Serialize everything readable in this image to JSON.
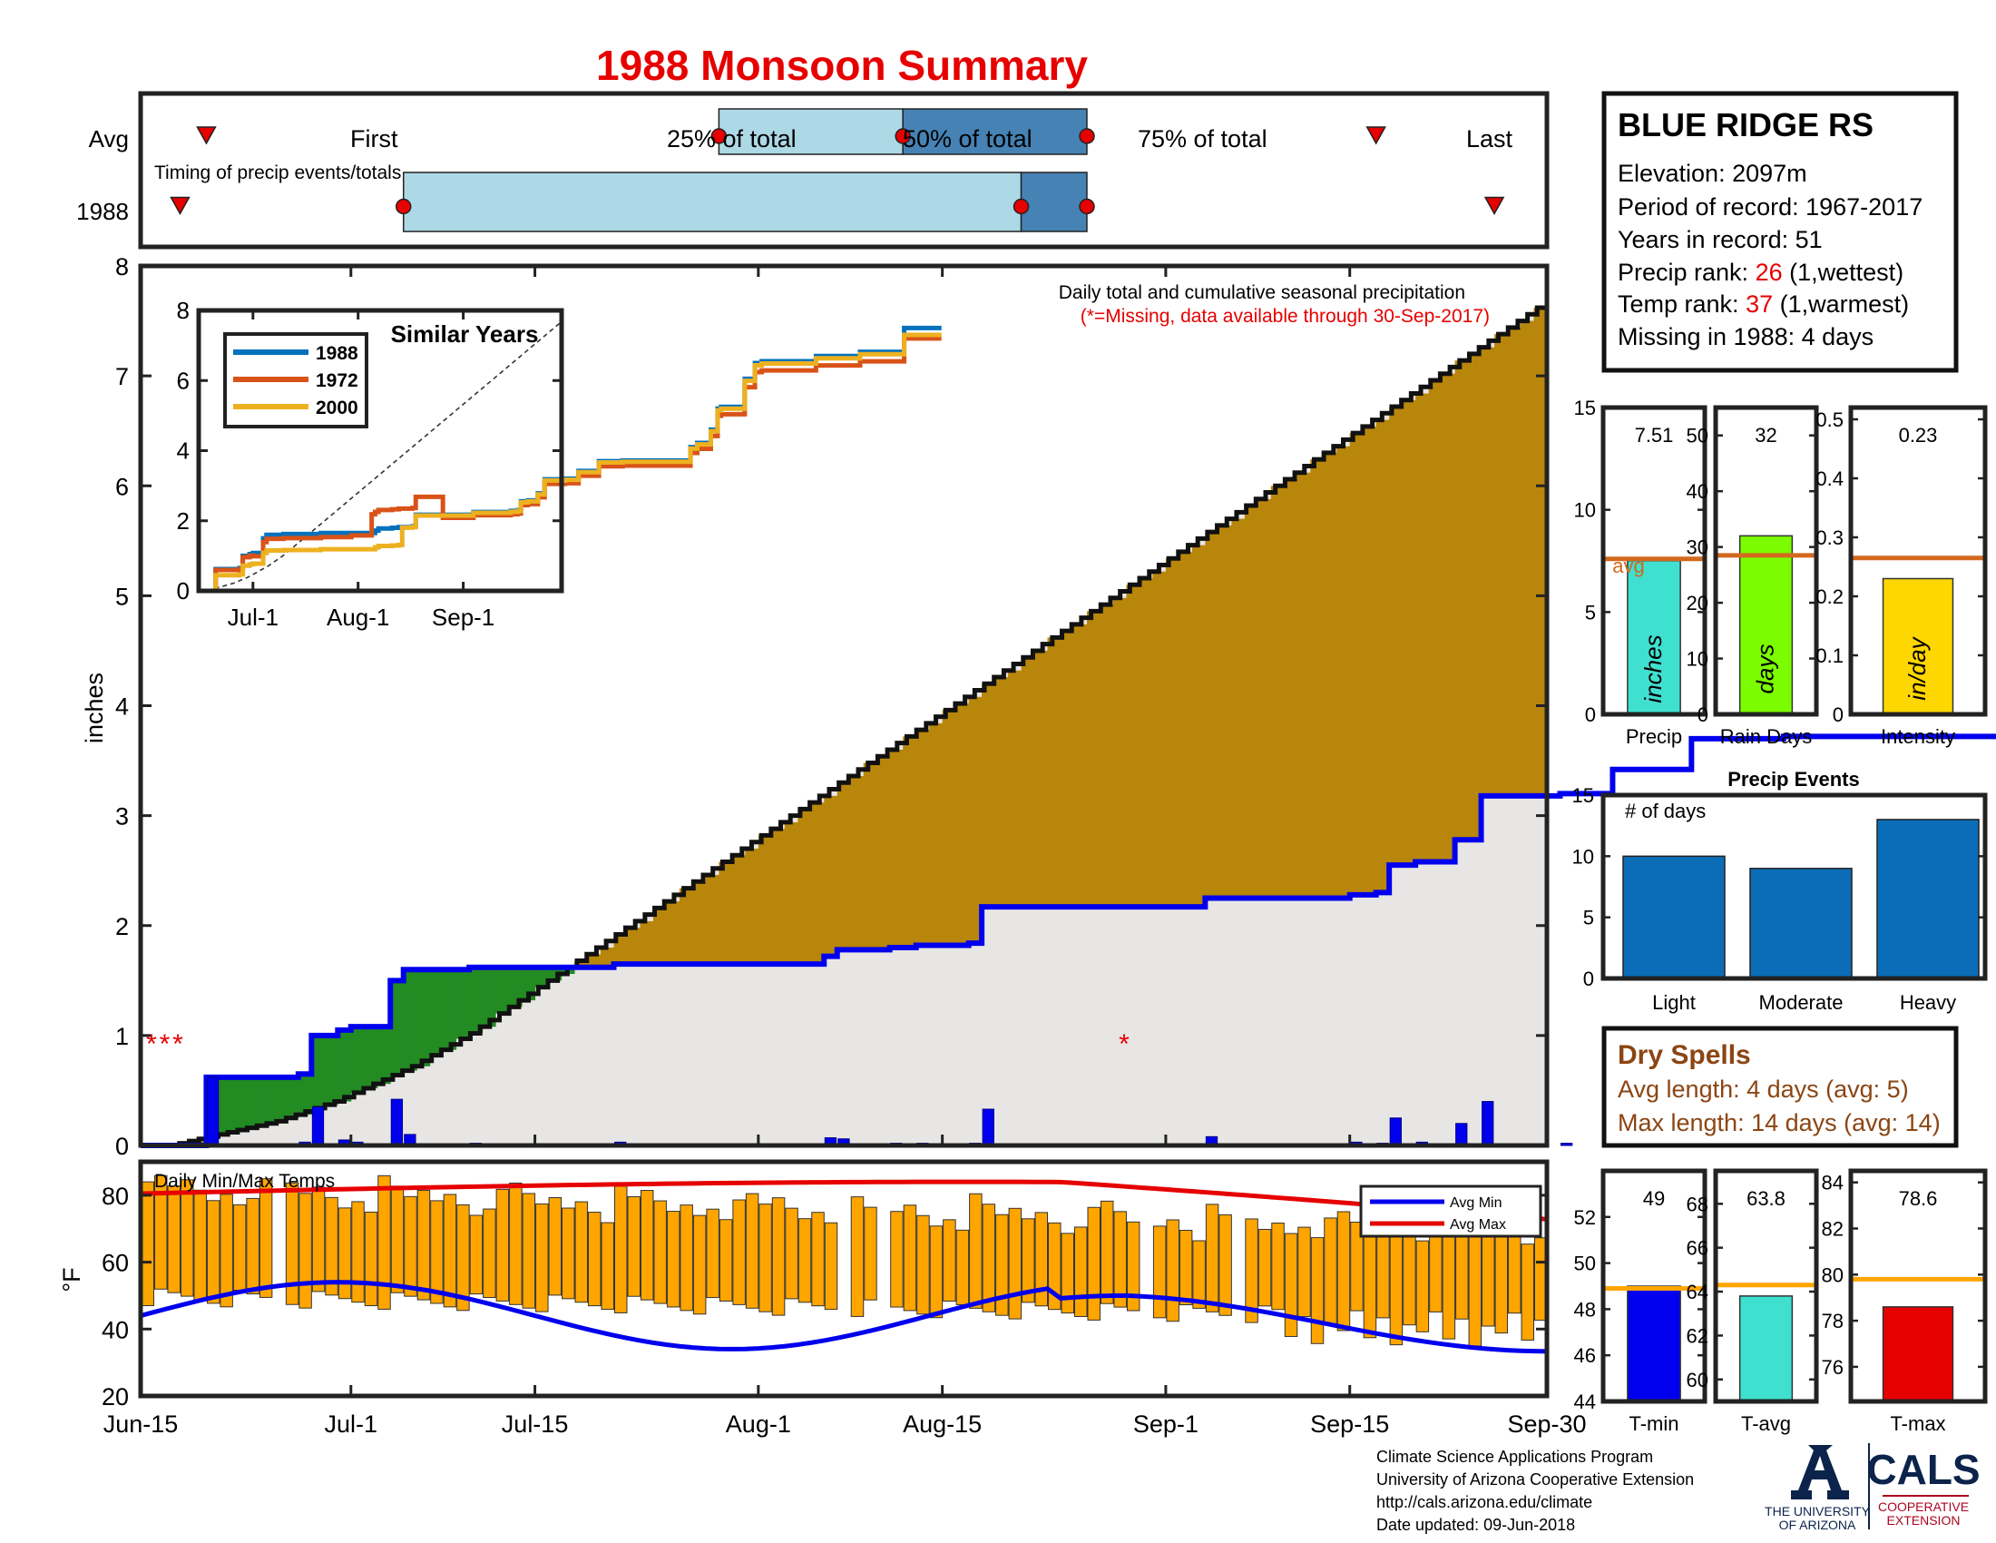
{
  "page": {
    "title": "1988 Monsoon Summary",
    "credits": [
      "Climate Science Applications Program",
      "University of Arizona Cooperative Extension",
      "http://cals.arizona.edu/climate",
      " Date updated: 09-Jun-2018"
    ],
    "logo_ua_text": [
      "THE UNIVERSITY",
      "OF ARIZONA"
    ],
    "logo_cals_text": "CALS",
    "logo_cals_sub": [
      "COOPERATIVE",
      "EXTENSION"
    ]
  },
  "colors": {
    "red": "#e60000",
    "blue_line": "#0000ee",
    "green": "#228b22",
    "brown": "#b8860b",
    "cum_fill": "#e8e6e4",
    "bar_blue": "#0000ee",
    "orange_avg": "#d2691e",
    "event_blue": "#0b6db7",
    "temp_bar": "#ffa500",
    "dry_brown": "#8b4513",
    "box_light": "#add8e6",
    "box_dark": "#4682b4",
    "ua_navy": "#0c234b",
    "ua_red": "#ab0520"
  },
  "station": {
    "name": "BLUE RIDGE RS",
    "elevation": "Elevation: 2097m",
    "period": "Period of record: 1967-2017",
    "years": "Years in record: 51",
    "precip_rank_label": "Precip rank: ",
    "precip_rank_value": "26",
    "precip_rank_note": " (1,wettest)",
    "temp_rank_label": "Temp rank: ",
    "temp_rank_value": "37",
    "temp_rank_note": " (1,warmest)",
    "missing": "Missing in 1988: 4 days"
  },
  "timing": {
    "row_labels": [
      "Avg",
      "1988"
    ],
    "annotation": "Timing of precip events/totals",
    "avg": {
      "first": "Jun-20",
      "p25": "Jul-29",
      "p50": "Aug-12",
      "p75": "Aug-26",
      "last": "Sep-17"
    },
    "year": {
      "first": "Jun-18",
      "p25": "Jul-05",
      "p50": "Aug-21",
      "p75": "Aug-26",
      "last": "Sep-26"
    },
    "labels": {
      "first": "First",
      "p25": "25% of total",
      "p50": "50% of total",
      "p75": "75% of total",
      "last": "Last"
    }
  },
  "chart_data": [
    {
      "type": "area",
      "title": "Daily total and cumulative seasonal precipitation",
      "subtitle": "(*=Missing, data available through 30-Sep-2017)",
      "ylabel": "inches",
      "ylim": [
        0,
        8
      ],
      "yticks": [
        0,
        1,
        2,
        3,
        4,
        5,
        6,
        7,
        8
      ],
      "xticks": [
        "Jun-15",
        "Jul-1",
        "Jul-15",
        "Aug-1",
        "Aug-15",
        "Sep-1",
        "Sep-15",
        "Sep-30"
      ],
      "missing_markers": [
        {
          "day": 0,
          "text": "*"
        },
        {
          "day": 1,
          "text": "*"
        },
        {
          "day": 2,
          "text": "*"
        },
        {
          "day": 74,
          "text": "*"
        }
      ],
      "series": [
        {
          "name": "1988 cumulative",
          "values": [
            0,
            0,
            0,
            0,
            0,
            0.62,
            0.62,
            0.62,
            0.62,
            0.62,
            0.62,
            0.62,
            0.65,
            1.0,
            1.0,
            1.05,
            1.08,
            1.08,
            1.08,
            1.5,
            1.6,
            1.6,
            1.6,
            1.6,
            1.6,
            1.62,
            1.62,
            1.62,
            1.62,
            1.62,
            1.62,
            1.62,
            1.62,
            1.62,
            1.62,
            1.62,
            1.65,
            1.65,
            1.65,
            1.65,
            1.65,
            1.65,
            1.65,
            1.65,
            1.65,
            1.65,
            1.65,
            1.65,
            1.65,
            1.65,
            1.65,
            1.65,
            1.72,
            1.78,
            1.78,
            1.78,
            1.78,
            1.8,
            1.8,
            1.82,
            1.82,
            1.82,
            1.82,
            1.84,
            2.17,
            2.17,
            2.17,
            2.17,
            2.17,
            2.17,
            2.17,
            2.17,
            2.17,
            2.17,
            2.17,
            2.17,
            2.17,
            2.17,
            2.17,
            2.17,
            2.17,
            2.25,
            2.25,
            2.25,
            2.25,
            2.25,
            2.25,
            2.25,
            2.25,
            2.25,
            2.25,
            2.25,
            2.28,
            2.28,
            2.3,
            2.55,
            2.55,
            2.58,
            2.58,
            2.58,
            2.78,
            2.78,
            3.18,
            3.18,
            3.18,
            3.18,
            3.18,
            3.18,
            3.2,
            3.2,
            3.2,
            3.2,
            3.42,
            3.42,
            3.42,
            3.42,
            3.42,
            3.42,
            3.7,
            3.7,
            3.7,
            3.7,
            3.7,
            3.7,
            3.7,
            3.72,
            3.72,
            3.72,
            3.72,
            3.72,
            3.72,
            3.72,
            3.72,
            3.72,
            3.72,
            3.72,
            3.72,
            3.72,
            3.72,
            3.72,
            3.72,
            3.72,
            3.72,
            3.72,
            3.72,
            4.1,
            4.1,
            4.22,
            4.22,
            4.22,
            4.22,
            4.6,
            4.6,
            5.2,
            5.25,
            5.25,
            5.25,
            5.25,
            5.25,
            5.25,
            5.25,
            6.05,
            6.05,
            6.05,
            6.5,
            6.5,
            6.55,
            6.55,
            6.55,
            6.55,
            6.55,
            6.55,
            6.55,
            6.55,
            6.55,
            6.55,
            6.55,
            6.55,
            6.55,
            6.55,
            6.55,
            6.55,
            6.7,
            6.7,
            6.7,
            6.7,
            6.7,
            6.7,
            6.7,
            6.7,
            6.7,
            6.7,
            6.7,
            6.7,
            6.7,
            6.82,
            6.82,
            6.82,
            6.82,
            6.82,
            6.82,
            6.82,
            6.82,
            6.82,
            6.82,
            6.82,
            6.82,
            6.82,
            7.5,
            7.5,
            7.5,
            7.5,
            7.5,
            7.5,
            7.5,
            7.5,
            7.5,
            7.5,
            7.5,
            7.5
          ]
        },
        {
          "name": "Average cumulative",
          "values": [
            0,
            0,
            0,
            0,
            0.02,
            0.04,
            0.06,
            0.08,
            0.1,
            0.12,
            0.14,
            0.16,
            0.18,
            0.2,
            0.22,
            0.25,
            0.28,
            0.31,
            0.34,
            0.37,
            0.4,
            0.44,
            0.48,
            0.52,
            0.56,
            0.6,
            0.64,
            0.68,
            0.72,
            0.77,
            0.82,
            0.87,
            0.92,
            0.97,
            1.02,
            1.08,
            1.14,
            1.2,
            1.26,
            1.32,
            1.38,
            1.44,
            1.5,
            1.56,
            1.62,
            1.68,
            1.74,
            1.8,
            1.86,
            1.92,
            1.98,
            2.04,
            2.1,
            2.16,
            2.22,
            2.28,
            2.34,
            2.4,
            2.46,
            2.52,
            2.58,
            2.64,
            2.7,
            2.76,
            2.82,
            2.88,
            2.94,
            3.0,
            3.06,
            3.12,
            3.18,
            3.24,
            3.3,
            3.36,
            3.42,
            3.48,
            3.54,
            3.6,
            3.66,
            3.72,
            3.78,
            3.84,
            3.9,
            3.96,
            4.02,
            4.08,
            4.14,
            4.2,
            4.26,
            4.32,
            4.38,
            4.44,
            4.5,
            4.56,
            4.62,
            4.68,
            4.74,
            4.8,
            4.86,
            4.92,
            4.98,
            5.04,
            5.1,
            5.16,
            5.22,
            5.28,
            5.34,
            5.4,
            5.46,
            5.52,
            5.58,
            5.64,
            5.7,
            5.76,
            5.82,
            5.88,
            5.94,
            6.0,
            6.06,
            6.12,
            6.18,
            6.24,
            6.3,
            6.36,
            6.42,
            6.48,
            6.54,
            6.6,
            6.66,
            6.72,
            6.78,
            6.84,
            6.9,
            6.96,
            7.02,
            7.08,
            7.14,
            7.2,
            7.26,
            7.32,
            7.38,
            7.44,
            7.5,
            7.56,
            7.62,
            7.68
          ]
        },
        {
          "name": "Daily precip",
          "values": []
        }
      ]
    },
    {
      "type": "line",
      "title": "Similar Years",
      "xticks": [
        "Jul-1",
        "Aug-1",
        "Sep-1"
      ],
      "yticks": [
        0,
        2,
        4,
        6,
        8
      ],
      "ylim": [
        0,
        8
      ],
      "series": [
        {
          "name": "1988",
          "color": "#0072bd"
        },
        {
          "name": "1972",
          "color": "#d95319"
        },
        {
          "name": "2000",
          "color": "#edb120"
        }
      ]
    },
    {
      "type": "bar",
      "categories": [
        "Precip",
        "Rain Days",
        "Intensity"
      ],
      "values": [
        7.51,
        32,
        0.23
      ],
      "value_labels": [
        "7.51",
        "32",
        "0.23"
      ],
      "units": [
        "inches",
        "days",
        "in/day"
      ],
      "averages": [
        7.6,
        28.5,
        0.265
      ],
      "ylims": [
        [
          0,
          15
        ],
        [
          0,
          55
        ],
        [
          0,
          0.52
        ]
      ],
      "yticks": [
        [
          0,
          5,
          10,
          15
        ],
        [
          0,
          10,
          20,
          30,
          40,
          50
        ],
        [
          0,
          0.1,
          0.2,
          0.3,
          0.4,
          0.5
        ]
      ],
      "avg_label": "avg"
    },
    {
      "type": "bar",
      "title": "Precip Events",
      "ylabel": "# of days",
      "categories": [
        "Light",
        "Moderate",
        "Heavy"
      ],
      "values": [
        10,
        9,
        13
      ],
      "ylim": [
        0,
        15
      ],
      "yticks": [
        0,
        5,
        10,
        15
      ]
    },
    {
      "type": "bar",
      "title": "Daily Min/Max Temps",
      "ylabel": "°F",
      "ylim": [
        20,
        90
      ],
      "yticks": [
        20,
        40,
        60,
        80
      ],
      "legend": [
        "Avg Min",
        "Avg Max"
      ],
      "legend_position": "top-right"
    },
    {
      "type": "bar",
      "categories": [
        "T-min",
        "T-avg",
        "T-max"
      ],
      "values": [
        49,
        63.8,
        78.6
      ],
      "value_labels": [
        "49",
        "63.8",
        "78.6"
      ],
      "averages": [
        48.9,
        64.3,
        79.8
      ],
      "ylims": [
        [
          44,
          54
        ],
        [
          59,
          69.5
        ],
        [
          74.5,
          84.5
        ]
      ],
      "yticks": [
        [
          44,
          46,
          48,
          50,
          52
        ],
        [
          60,
          62,
          64,
          66,
          68
        ],
        [
          76,
          78,
          80,
          82,
          84
        ]
      ]
    }
  ],
  "dry_spells": {
    "title": "Dry Spells",
    "avg": "Avg length: 4 days (avg: 5)",
    "max": "Max length: 14 days (avg: 14)"
  }
}
